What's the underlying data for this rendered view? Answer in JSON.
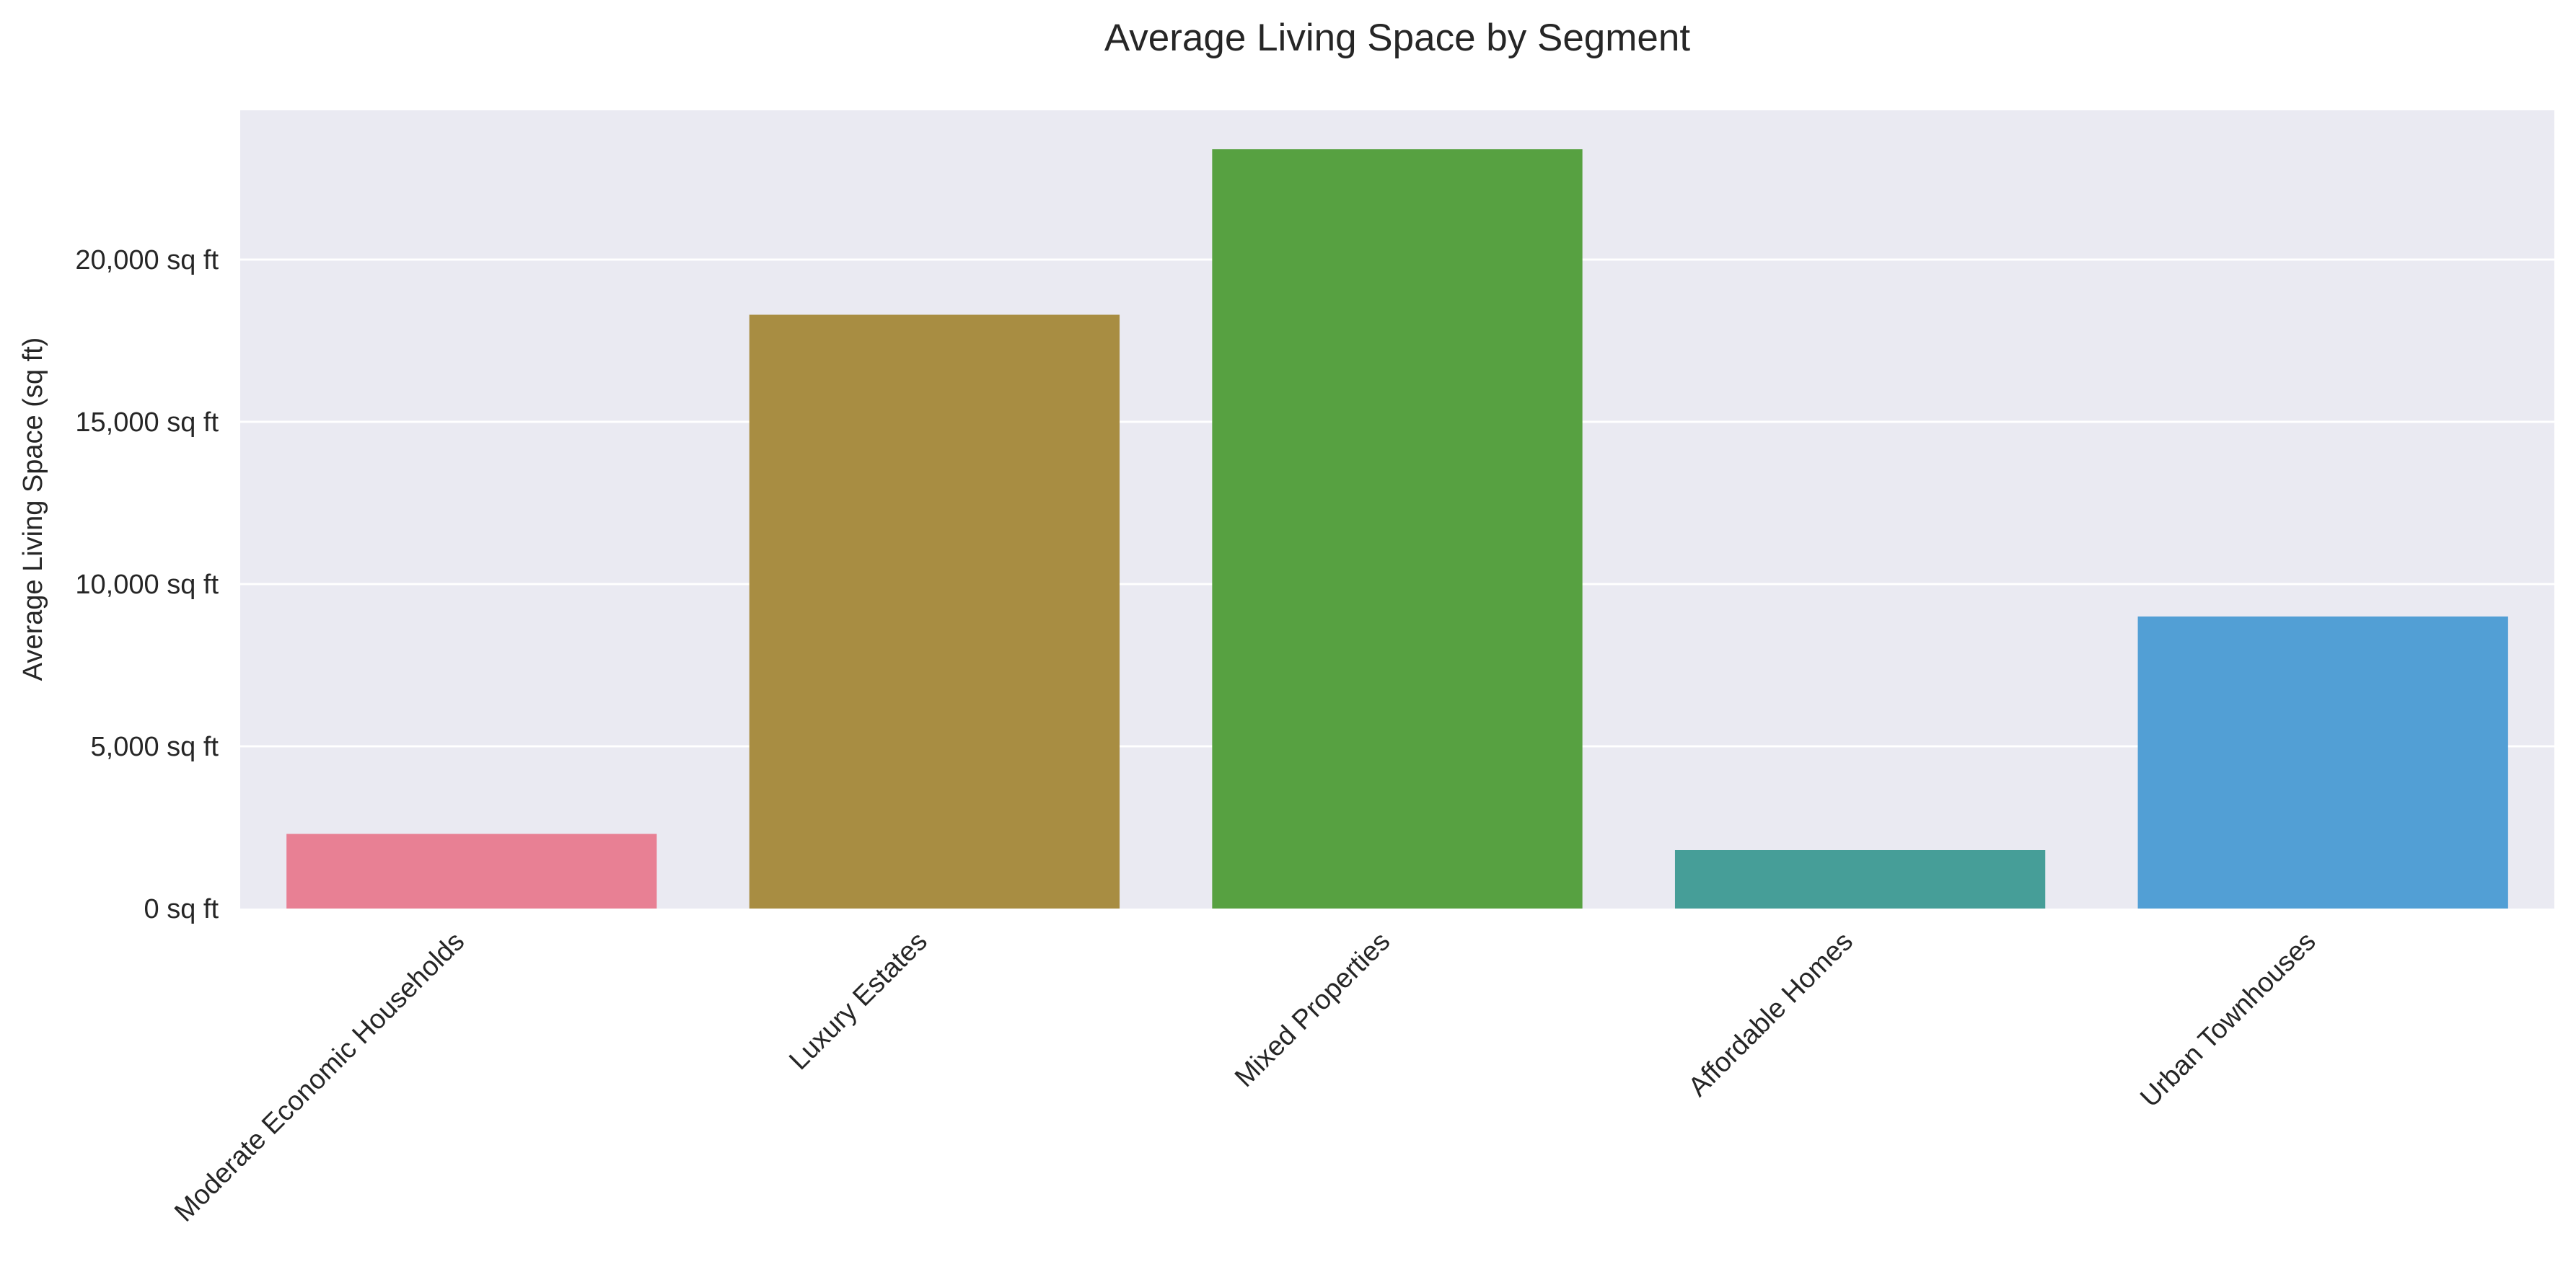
{
  "chart_data": {
    "type": "bar",
    "title": "Average Living Space by Segment",
    "xlabel": "",
    "ylabel": "Average Living Space (sq ft)",
    "categories": [
      "Moderate Economic Households",
      "Luxury Estates",
      "Mixed Properties",
      "Affordable Homes",
      "Urban Townhouses"
    ],
    "values": [
      2300,
      18300,
      23400,
      1800,
      9000
    ],
    "colors": [
      "#e88094",
      "#a88d42",
      "#57a141",
      "#469e98",
      "#529fd5"
    ],
    "ylim": [
      0,
      24600
    ],
    "yticks": [
      0,
      5000,
      10000,
      15000,
      20000
    ],
    "ytick_labels": [
      "0 sq ft",
      "5,000 sq ft",
      "10,000 sq ft",
      "15,000 sq ft",
      "20,000 sq ft"
    ],
    "grid": true,
    "background": "#eaeaf2",
    "grid_color": "#ffffff"
  }
}
